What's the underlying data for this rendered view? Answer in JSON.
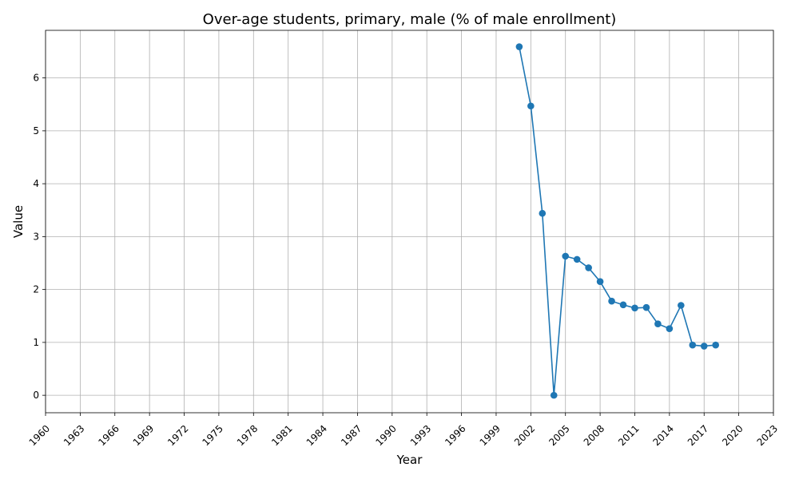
{
  "chart_data": {
    "type": "line",
    "title": "Over-age students, primary, male (% of male enrollment)",
    "xlabel": "Year",
    "ylabel": "Value",
    "xlim": [
      1960,
      2023
    ],
    "ylim": [
      -0.33,
      6.9
    ],
    "x_ticks": [
      "1960",
      "1963",
      "1966",
      "1969",
      "1972",
      "1975",
      "1978",
      "1981",
      "1984",
      "1987",
      "1990",
      "1993",
      "1996",
      "1999",
      "2002",
      "2005",
      "2008",
      "2011",
      "2014",
      "2017",
      "2020",
      "2023"
    ],
    "y_ticks": [
      "0",
      "1",
      "2",
      "3",
      "4",
      "5",
      "6"
    ],
    "grid": true,
    "legend": "none",
    "line_color": "#1f77b4",
    "series": [
      {
        "x": [
          2001,
          2002,
          2003,
          2004,
          2005,
          2006,
          2007,
          2008,
          2009,
          2010,
          2011,
          2012,
          2013,
          2014,
          2015,
          2016,
          2017,
          2018
        ],
        "values": [
          6.59,
          5.47,
          3.44,
          0.0,
          2.63,
          2.57,
          2.41,
          2.15,
          1.78,
          1.71,
          1.65,
          1.66,
          1.35,
          1.26,
          1.7,
          0.95,
          0.93,
          0.95
        ]
      }
    ]
  }
}
